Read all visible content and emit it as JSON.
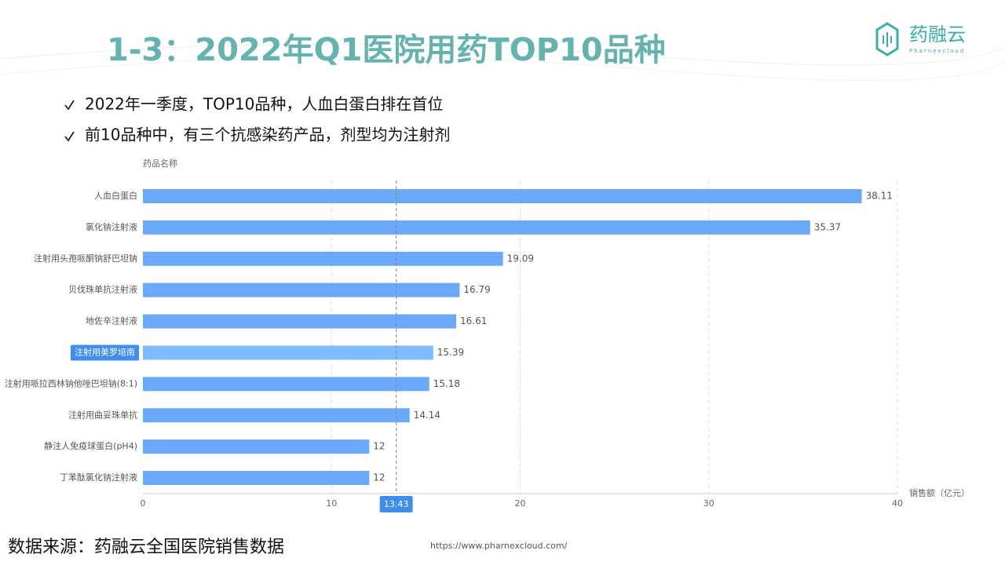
{
  "header": {
    "title": "1-3：2022年Q1医院用药TOP10品种",
    "logo_name": "药融云",
    "logo_sub": "Pharnexcloud"
  },
  "bullets": [
    "2022年一季度，TOP10品种，人血白蛋白排在首位",
    "前10品种中，有三个抗感染药产品，剂型均为注射剂"
  ],
  "chart_data": {
    "type": "bar",
    "orientation": "horizontal",
    "y_axis_label": "药品名称",
    "x_axis_label": "销售额（亿元）",
    "categories": [
      "人血白蛋白",
      "氯化钠注射液",
      "注射用头孢哌酮钠舒巴坦钠",
      "贝伐珠单抗注射液",
      "地佐辛注射液",
      "注射用美罗培南",
      "注射用哌拉西林钠他唑巴坦钠(8:1)",
      "注射用曲妥珠单抗",
      "静注人免疫球蛋白(pH4)",
      "丁苯酞氯化钠注射液"
    ],
    "values": [
      38.11,
      35.37,
      19.09,
      16.79,
      16.61,
      15.39,
      15.18,
      14.14,
      12,
      12
    ],
    "color": "#6aa8f9",
    "highlight_color": "#7dbcff",
    "highlight_index": 5,
    "xlim": [
      0,
      40
    ],
    "xticks": [
      0,
      10,
      20,
      30,
      40
    ],
    "grid": true,
    "marker_value": 13.43
  },
  "footer": {
    "source": "数据来源：药融云全国医院销售数据",
    "url": "https://www.pharnexcloud.com/"
  }
}
